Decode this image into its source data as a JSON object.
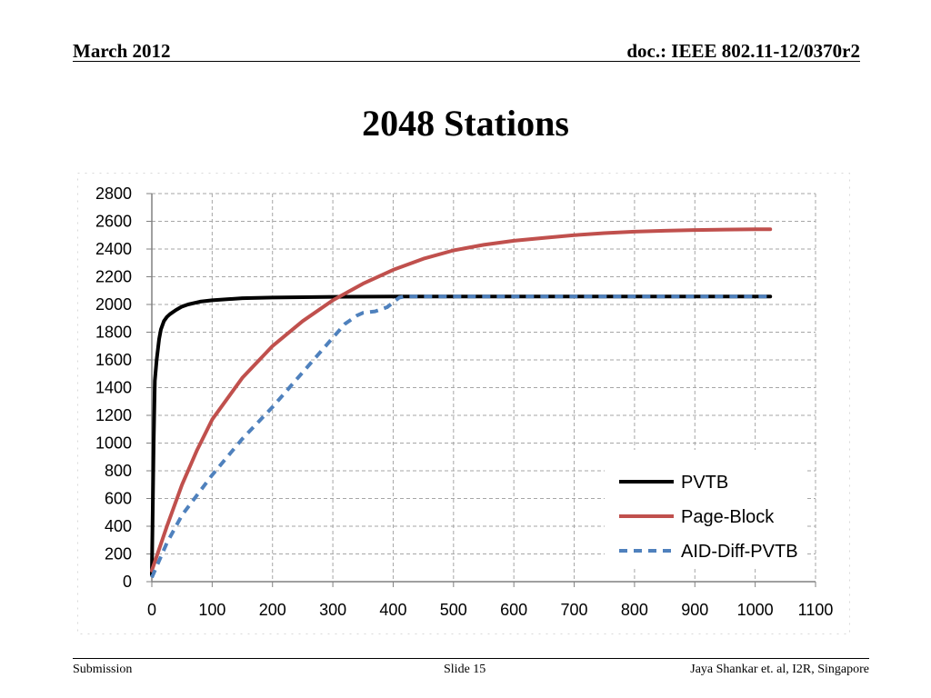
{
  "header": {
    "date": "March 2012",
    "doc": "doc.: IEEE 802.11-12/0370r2"
  },
  "slide_title": "2048 Stations",
  "footer": {
    "left": "Submission",
    "center": "Slide 15",
    "right": "Jaya Shankar et. al, I2R, Singapore"
  },
  "chart_data": {
    "type": "line",
    "title": "",
    "xlabel": "",
    "ylabel": "",
    "xlim": [
      0,
      1100
    ],
    "ylim": [
      0,
      2800
    ],
    "xticks": [
      0,
      100,
      200,
      300,
      400,
      500,
      600,
      700,
      800,
      900,
      1000,
      1100
    ],
    "yticks": [
      0,
      200,
      400,
      600,
      800,
      1000,
      1200,
      1400,
      1600,
      1800,
      2000,
      2200,
      2400,
      2600,
      2800
    ],
    "grid": "dashed",
    "legend_position": "bottom-right",
    "series": [
      {
        "name": "PVTB",
        "color": "#000000",
        "style": "solid",
        "x": [
          0,
          3,
          5,
          8,
          12,
          15,
          20,
          25,
          30,
          40,
          50,
          60,
          80,
          100,
          150,
          200,
          300,
          400,
          500,
          600,
          700,
          800,
          900,
          1025
        ],
        "y": [
          50,
          1000,
          1450,
          1600,
          1750,
          1820,
          1880,
          1910,
          1930,
          1960,
          1985,
          2000,
          2020,
          2030,
          2045,
          2050,
          2055,
          2058,
          2058,
          2058,
          2058,
          2058,
          2058,
          2058
        ]
      },
      {
        "name": "Page-Block",
        "color": "#c0504d",
        "style": "solid",
        "x": [
          0,
          25,
          50,
          75,
          100,
          150,
          200,
          250,
          300,
          350,
          400,
          450,
          500,
          550,
          600,
          650,
          700,
          750,
          800,
          850,
          900,
          950,
          1000,
          1025
        ],
        "y": [
          80,
          400,
          700,
          950,
          1170,
          1470,
          1700,
          1880,
          2030,
          2150,
          2250,
          2330,
          2390,
          2430,
          2460,
          2480,
          2500,
          2515,
          2525,
          2532,
          2537,
          2540,
          2542,
          2543
        ]
      },
      {
        "name": "AID-Diff-PVTB",
        "color": "#4f81bd",
        "style": "dashed",
        "x": [
          0,
          25,
          50,
          100,
          150,
          200,
          250,
          300,
          320,
          340,
          350,
          370,
          390,
          410,
          420,
          500,
          600,
          700,
          800,
          900,
          1000,
          1025
        ],
        "y": [
          30,
          280,
          480,
          770,
          1030,
          1260,
          1510,
          1760,
          1860,
          1920,
          1940,
          1950,
          1980,
          2050,
          2058,
          2058,
          2058,
          2058,
          2058,
          2058,
          2058,
          2058
        ]
      }
    ]
  }
}
